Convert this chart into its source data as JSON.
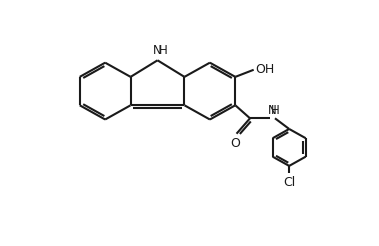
{
  "background_color": "#ffffff",
  "line_color": "#1a1a1a",
  "line_width": 1.5,
  "font_size": 9,
  "figsize": [
    3.79,
    2.46
  ],
  "dpi": 100,
  "xlim": [
    -1,
    11
  ],
  "ylim": [
    -0.5,
    7.5
  ]
}
